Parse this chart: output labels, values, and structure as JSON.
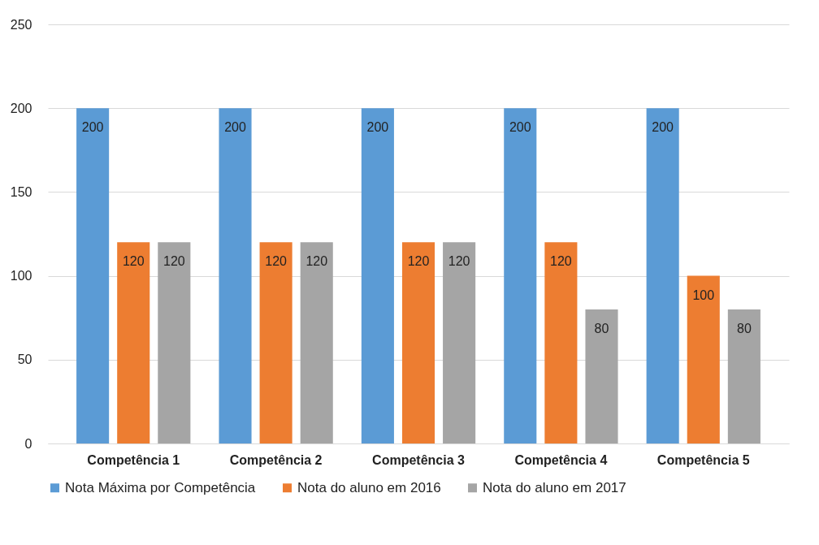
{
  "chart_data": {
    "type": "bar",
    "categories": [
      "Competência 1",
      "Competência 2",
      "Competência 3",
      "Competência 4",
      "Competência 5"
    ],
    "series": [
      {
        "name": "Nota Máxima por Competência",
        "color": "#5b9bd5",
        "values": [
          200,
          200,
          200,
          200,
          200
        ]
      },
      {
        "name": "Nota do aluno em 2016",
        "color": "#ed7d31",
        "values": [
          120,
          120,
          120,
          120,
          100
        ]
      },
      {
        "name": "Nota do aluno em 2017",
        "color": "#a5a5a5",
        "values": [
          120,
          120,
          120,
          80,
          80
        ]
      }
    ],
    "ylim": [
      0,
      250
    ],
    "yticks": [
      0,
      50,
      100,
      150,
      200,
      250
    ],
    "grid": "y",
    "legend": "bottom",
    "data_labels": true
  }
}
